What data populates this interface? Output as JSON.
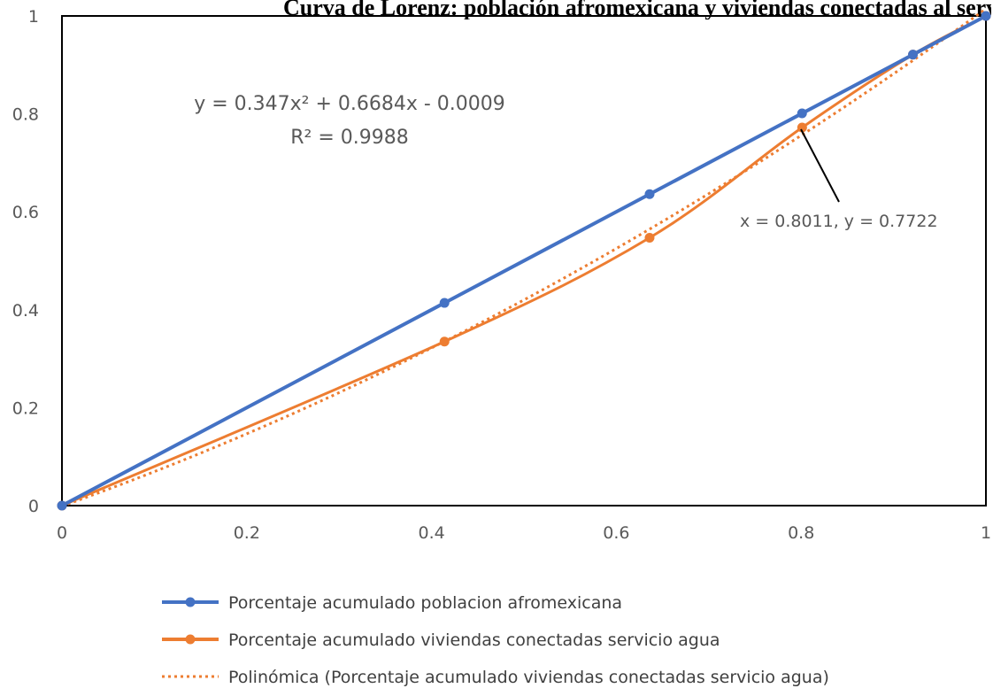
{
  "chart_data": {
    "type": "line",
    "title": "Curva de Lorenz: población afromexicana y viviendas conectadas al servicio de agua",
    "xlabel": "",
    "ylabel": "",
    "xlim": [
      0,
      1
    ],
    "ylim": [
      0,
      1
    ],
    "x_ticks": [
      "0",
      "0.2",
      "0.4",
      "0.6",
      "0.8",
      "1"
    ],
    "y_ticks": [
      "0",
      "0.2",
      "0.4",
      "0.6",
      "0.8",
      "1"
    ],
    "grid": false,
    "legend_position": "bottom",
    "series": [
      {
        "name": "Porcentaje acumulado poblacion afromexicana",
        "color": "#4472C4",
        "style": "solid-markers",
        "x": [
          0,
          0.414,
          0.636,
          0.801,
          0.921,
          1
        ],
        "y": [
          0,
          0.414,
          0.636,
          0.801,
          0.921,
          1
        ]
      },
      {
        "name": "Porcentaje acumulado viviendas conectadas servicio agua",
        "color": "#ED7D31",
        "style": "smooth-markers",
        "x": [
          0,
          0.414,
          0.636,
          0.8011,
          0.921,
          1
        ],
        "y": [
          0,
          0.335,
          0.547,
          0.7722,
          0.921,
          1
        ]
      },
      {
        "name": "Polinómica (Porcentaje acumulado viviendas conectadas servicio agua)",
        "color": "#ED7D31",
        "style": "dotted",
        "trend": {
          "a": 0.347,
          "b": 0.6684,
          "c": -0.0009
        }
      }
    ],
    "annotations": {
      "equation": "y = 0.347x² + 0.6684x - 0.0009",
      "r_squared": "R² = 0.9988",
      "callout": "x = 0.8011, y = 0.7722"
    }
  }
}
